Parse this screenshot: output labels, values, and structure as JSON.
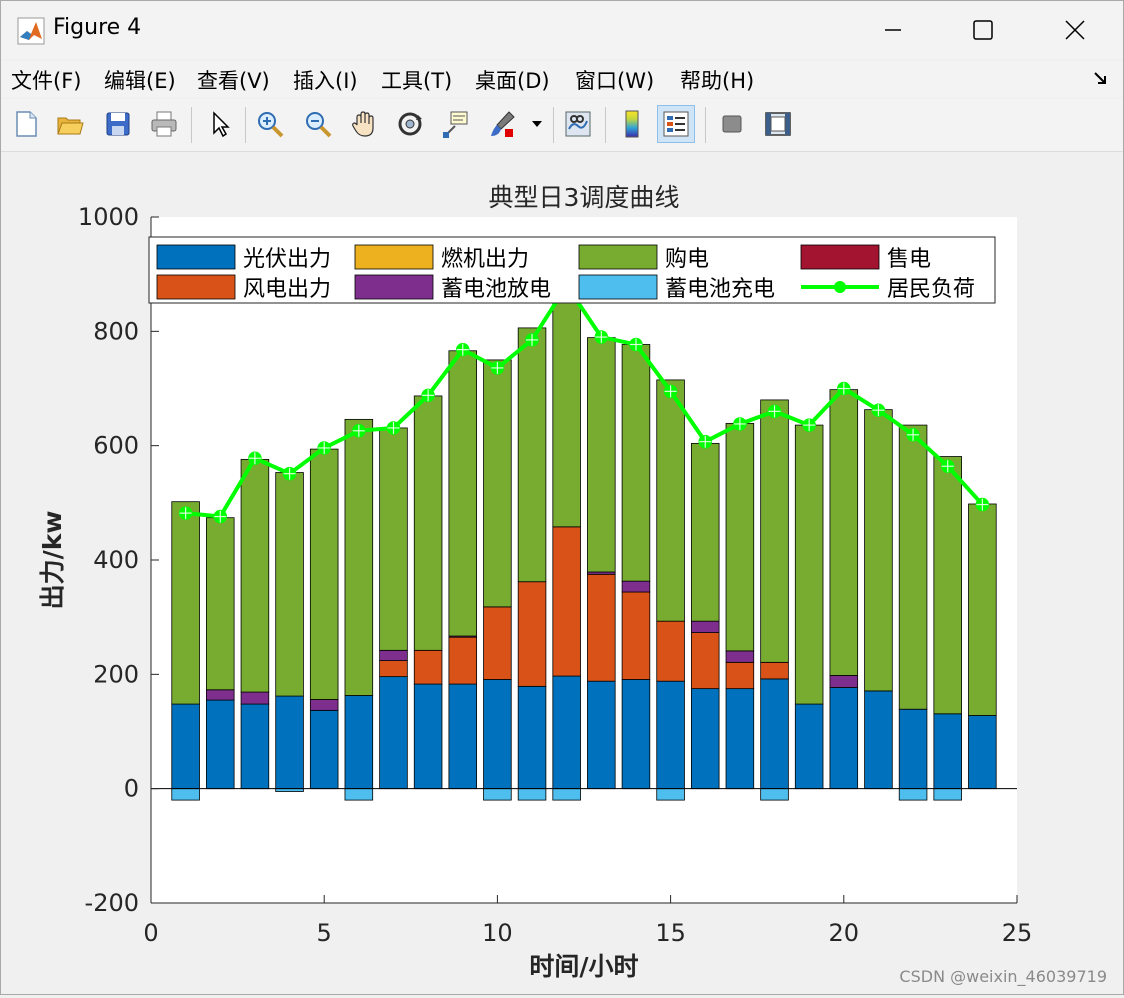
{
  "window": {
    "title": "Figure 4",
    "controls": {
      "minimize": "minimize",
      "maximize": "maximize",
      "close": "close"
    }
  },
  "menu": {
    "items": [
      "文件(F)",
      "编辑(E)",
      "查看(V)",
      "插入(I)",
      "工具(T)",
      "桌面(D)",
      "窗口(W)",
      "帮助(H)"
    ]
  },
  "toolbar": {
    "buttons": [
      {
        "icon": "new-file-icon"
      },
      {
        "icon": "open-folder-icon"
      },
      {
        "icon": "save-icon"
      },
      {
        "icon": "print-icon"
      },
      {
        "icon": "pointer-icon"
      },
      {
        "icon": "zoom-in-icon"
      },
      {
        "icon": "zoom-out-icon"
      },
      {
        "icon": "pan-hand-icon"
      },
      {
        "icon": "rotate-3d-icon"
      },
      {
        "icon": "data-cursor-icon"
      },
      {
        "icon": "brush-icon"
      },
      {
        "icon": "link-plot-icon"
      },
      {
        "icon": "colorbar-icon"
      },
      {
        "icon": "legend-icon"
      },
      {
        "icon": "hide-plot-tools-icon"
      },
      {
        "icon": "show-plot-tools-icon"
      }
    ]
  },
  "chart_data": {
    "type": "bar",
    "stacked": true,
    "title": "典型日3调度曲线",
    "xlabel": "时间/小时",
    "ylabel": "出力/kw",
    "xlim": [
      0,
      25
    ],
    "ylim": [
      -200,
      1000
    ],
    "xticks": [
      0,
      5,
      10,
      15,
      20,
      25
    ],
    "yticks": [
      -200,
      0,
      200,
      400,
      600,
      800,
      1000
    ],
    "legend_position": "top",
    "x": [
      1,
      2,
      3,
      4,
      5,
      6,
      7,
      8,
      9,
      10,
      11,
      12,
      13,
      14,
      15,
      16,
      17,
      18,
      19,
      20,
      21,
      22,
      23,
      24
    ],
    "series": [
      {
        "name": "光伏出力",
        "color": "#0072bd",
        "values": [
          148,
          155,
          148,
          162,
          137,
          163,
          196,
          183,
          183,
          191,
          179,
          197,
          188,
          191,
          188,
          175,
          175,
          192,
          148,
          177,
          171,
          139,
          131,
          128
        ]
      },
      {
        "name": "风电出力",
        "color": "#d95319",
        "values": [
          0,
          0,
          0,
          0,
          0,
          0,
          28,
          59,
          82,
          127,
          183,
          261,
          187,
          153,
          105,
          98,
          46,
          29,
          0,
          0,
          0,
          0,
          0,
          0
        ]
      },
      {
        "name": "燃机出力",
        "color": "#edb120",
        "values": [
          0,
          0,
          0,
          0,
          0,
          0,
          0,
          0,
          0,
          0,
          0,
          0,
          0,
          0,
          0,
          0,
          0,
          0,
          0,
          0,
          0,
          0,
          0,
          0
        ]
      },
      {
        "name": "蓄电池放电",
        "color": "#7e2f8e",
        "values": [
          0,
          18,
          21,
          0,
          19,
          0,
          18,
          0,
          2,
          0,
          0,
          0,
          4,
          19,
          0,
          20,
          20,
          0,
          0,
          21,
          0,
          0,
          0,
          0
        ]
      },
      {
        "name": "购电",
        "color": "#77ac30",
        "values": [
          354,
          301,
          407,
          391,
          438,
          483,
          389,
          445,
          499,
          432,
          444,
          400,
          410,
          414,
          422,
          311,
          398,
          459,
          488,
          500,
          492,
          497,
          450,
          370
        ]
      },
      {
        "name": "售电",
        "color": "#a2142f",
        "values": [
          0,
          0,
          0,
          0,
          0,
          0,
          0,
          0,
          0,
          0,
          0,
          0,
          0,
          0,
          0,
          0,
          0,
          0,
          0,
          0,
          0,
          0,
          0,
          0
        ]
      },
      {
        "name": "蓄电池充电",
        "color": "#4dbeee",
        "values": [
          -20,
          0,
          0,
          -5,
          0,
          -20,
          0,
          0,
          0,
          -20,
          -20,
          -20,
          0,
          0,
          -20,
          0,
          0,
          -20,
          0,
          0,
          0,
          -20,
          -20,
          0
        ]
      }
    ],
    "line": {
      "name": "居民负荷",
      "color": "#00ff00",
      "values": [
        482,
        476,
        578,
        551,
        596,
        626,
        631,
        688,
        768,
        736,
        785,
        880,
        790,
        777,
        695,
        607,
        638,
        660,
        636,
        700,
        662,
        619,
        564,
        497
      ]
    },
    "legend_order": [
      "光伏出力",
      "燃机出力",
      "购电",
      "售电",
      "风电出力",
      "蓄电池放电",
      "蓄电池充电",
      "居民负荷"
    ]
  },
  "watermark": "CSDN @weixin_46039719"
}
